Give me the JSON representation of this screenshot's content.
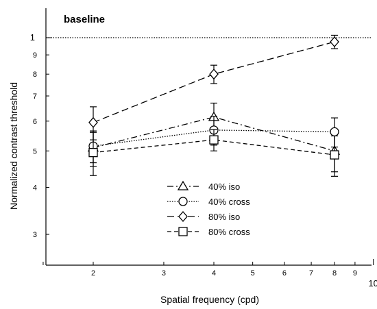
{
  "chart_data": {
    "type": "line",
    "title": "baseline",
    "xlabel": "Spatial frequency (cpd)",
    "ylabel": "Normalized contrast threshold",
    "x_scale": "log",
    "y_scale": "log",
    "xlim": [
      1.4,
      11
    ],
    "ylim": [
      0.265,
      1.25
    ],
    "x_ticks_major": [
      10
    ],
    "x_tick_labels": [
      "2",
      "3",
      "4",
      "5",
      "6",
      "7",
      "8",
      "9"
    ],
    "x_major_label": "10",
    "y_tick_labels": [
      "3",
      "4",
      "5",
      "6",
      "7",
      "8",
      "9"
    ],
    "y_major_label": "1",
    "reference_line": {
      "y": 1.0,
      "style": "dotted"
    },
    "x": [
      2,
      4,
      8
    ],
    "series": [
      {
        "name": "40% iso",
        "marker": "triangle",
        "dash": "dash-dot",
        "values": [
          0.51,
          0.615,
          0.5
        ],
        "error": [
          0.055,
          0.055,
          0.06
        ]
      },
      {
        "name": "40% cross",
        "marker": "circle",
        "dash": "dotted",
        "values": [
          0.515,
          0.568,
          0.562
        ],
        "error": [
          0.05,
          0.05,
          0.05
        ]
      },
      {
        "name": "80% iso",
        "marker": "diamond",
        "dash": "dashed",
        "values": [
          0.595,
          0.8,
          0.975
        ],
        "error": [
          0.06,
          0.045,
          0.04
        ]
      },
      {
        "name": "80% cross",
        "marker": "square",
        "dash": "short-dash",
        "values": [
          0.495,
          0.535,
          0.488
        ],
        "error": [
          0.065,
          0.035,
          0.06
        ]
      }
    ],
    "legend_position": "bottom-center",
    "grid": false
  }
}
